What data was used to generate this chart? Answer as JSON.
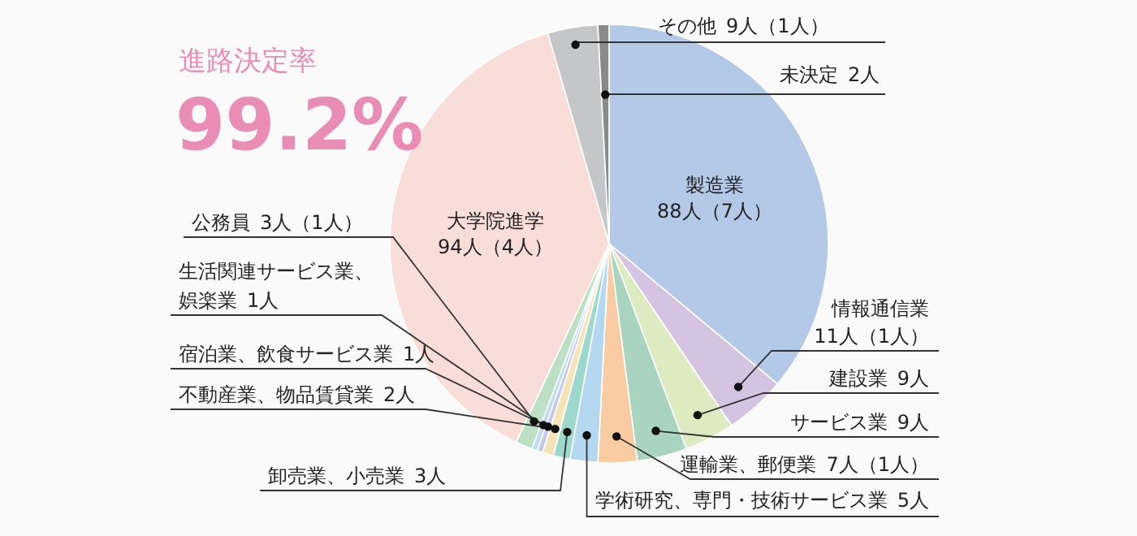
{
  "chart_data": {
    "type": "pie",
    "title": "進路決定率",
    "subtitle": "99.2%",
    "categories": [
      "製造業",
      "情報通信業",
      "建設業",
      "サービス業",
      "運輸業、郵便業",
      "学術研究、専門・技術サービス業",
      "卸売業、小売業",
      "不動産業、物品賃貸業",
      "宿泊業、飲食サービス業",
      "生活関連サービス業、娯楽業",
      "公務員",
      "大学院進学",
      "その他",
      "未決定"
    ],
    "values": [
      88,
      11,
      9,
      9,
      7,
      5,
      3,
      2,
      1,
      1,
      3,
      94,
      9,
      2
    ],
    "value_labels": [
      "88人（7人）",
      "11人（1人）",
      "9人",
      "9人",
      "7人（1人）",
      "5人",
      "3人",
      "2人",
      "1人",
      "1人",
      "3人（1人）",
      "94人（4人）",
      "9人（1人）",
      "2人"
    ],
    "colors": [
      "#b4c8e8",
      "#d4c4e2",
      "#dcebc0",
      "#a8d4c0",
      "#f9cca4",
      "#b4d8f0",
      "#9cd8cc",
      "#f4e4b8",
      "#c4c8ec",
      "#c0dcf4",
      "#bce0c4",
      "#f9ddd8",
      "#c4c6c8",
      "#8a8a8a"
    ],
    "data_labels": false
  }
}
